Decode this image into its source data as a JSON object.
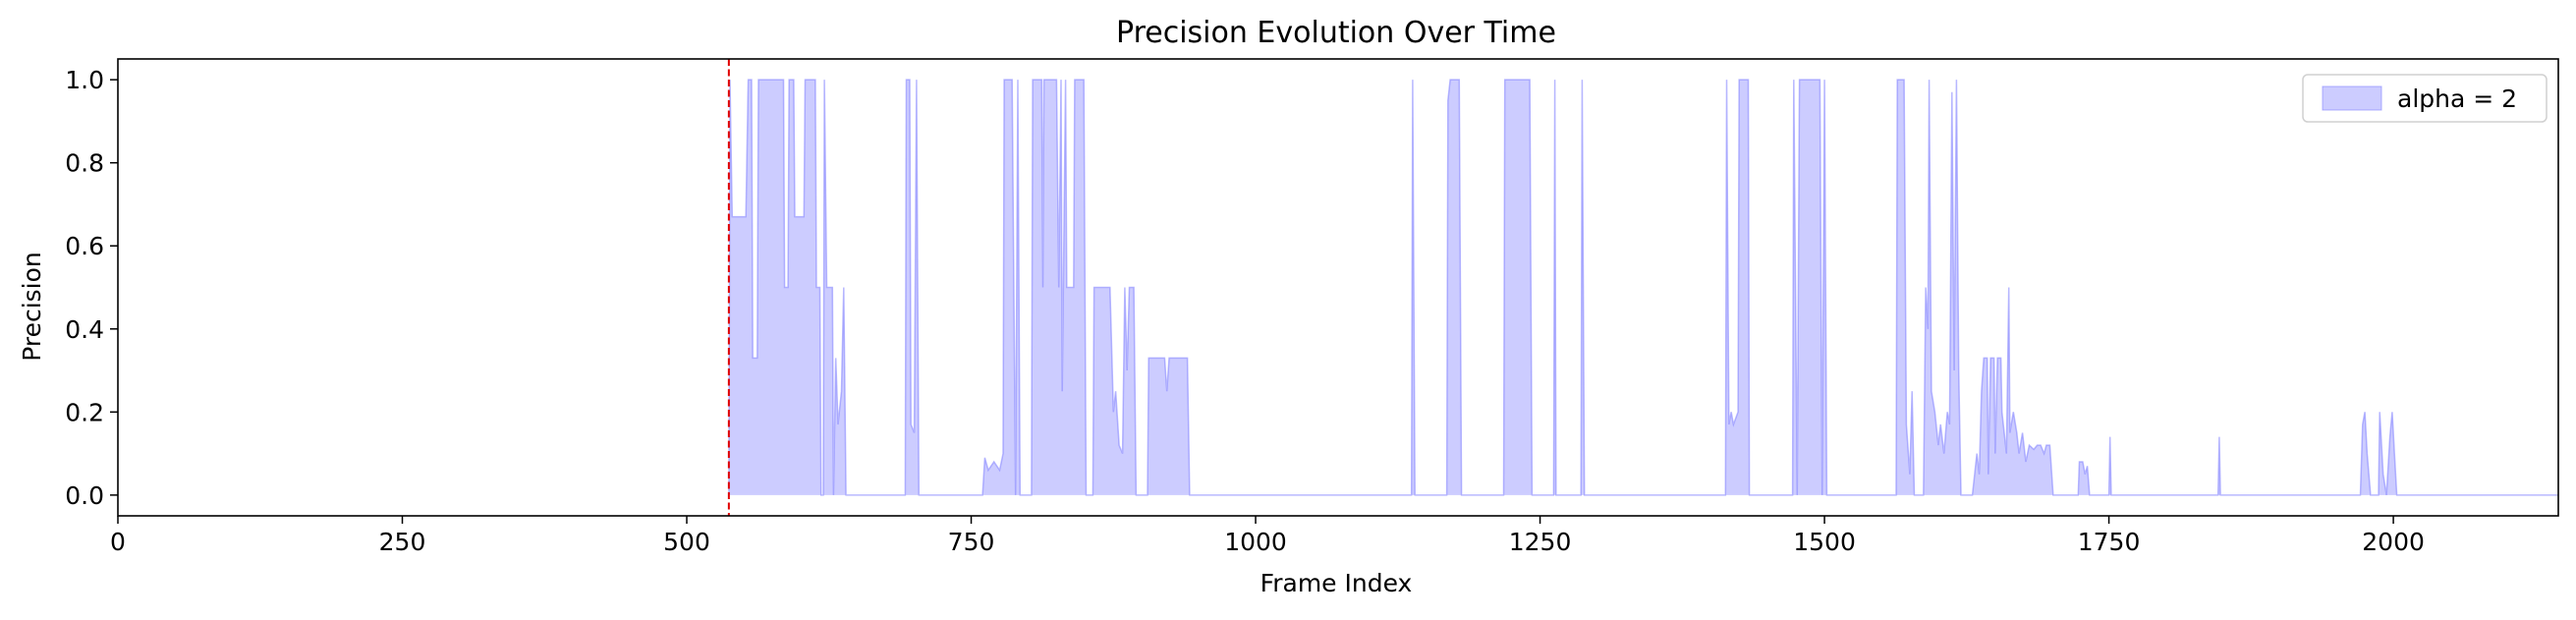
{
  "chart_data": {
    "type": "area",
    "title": "Precision Evolution Over Time",
    "xlabel": "Frame Index",
    "ylabel": "Precision",
    "xlim": [
      0,
      2145
    ],
    "ylim": [
      -0.05,
      1.05
    ],
    "xticks": [
      0,
      250,
      500,
      750,
      1000,
      1250,
      1500,
      1750,
      2000
    ],
    "yticks": [
      0.0,
      0.2,
      0.4,
      0.6,
      0.8,
      1.0
    ],
    "grid": false,
    "legend": {
      "position": "top-right"
    },
    "vline": {
      "x": 537,
      "color": "#e00000",
      "style": "dashed"
    },
    "series": [
      {
        "name": "alpha = 2",
        "color": "#8080ff",
        "fill_alpha": 0.4,
        "points": [
          [
            537,
            0
          ],
          [
            538,
            1.0
          ],
          [
            540,
            0.67
          ],
          [
            552,
            0.67
          ],
          [
            554,
            1.0
          ],
          [
            557,
            1.0
          ],
          [
            558,
            0.33
          ],
          [
            562,
            0.33
          ],
          [
            563,
            1.0
          ],
          [
            585,
            1.0
          ],
          [
            586,
            0.5
          ],
          [
            589,
            0.5
          ],
          [
            590,
            1.0
          ],
          [
            594,
            1.0
          ],
          [
            595,
            0.67
          ],
          [
            603,
            0.67
          ],
          [
            604,
            1.0
          ],
          [
            613,
            1.0
          ],
          [
            614,
            0.5
          ],
          [
            617,
            0.5
          ],
          [
            618,
            0
          ],
          [
            620,
            0
          ],
          [
            621,
            1.0
          ],
          [
            623,
            0.5
          ],
          [
            628,
            0.5
          ],
          [
            629,
            0
          ],
          [
            631,
            0.33
          ],
          [
            633,
            0.17
          ],
          [
            636,
            0.25
          ],
          [
            638,
            0.5
          ],
          [
            640,
            0
          ],
          [
            692,
            0
          ],
          [
            693,
            1.0
          ],
          [
            696,
            1.0
          ],
          [
            697,
            0.17
          ],
          [
            700,
            0.15
          ],
          [
            702,
            1.0
          ],
          [
            704,
            0
          ],
          [
            760,
            0
          ],
          [
            762,
            0.09
          ],
          [
            765,
            0.06
          ],
          [
            770,
            0.08
          ],
          [
            775,
            0.06
          ],
          [
            778,
            0.1
          ],
          [
            779,
            1.0
          ],
          [
            786,
            1.0
          ],
          [
            789,
            0
          ],
          [
            791,
            1.0
          ],
          [
            793,
            0
          ],
          [
            803,
            0
          ],
          [
            804,
            1.0
          ],
          [
            812,
            1.0
          ],
          [
            813,
            0.5
          ],
          [
            814,
            1.0
          ],
          [
            825,
            1.0
          ],
          [
            827,
            0.5
          ],
          [
            829,
            1.0
          ],
          [
            830,
            0.25
          ],
          [
            833,
            1.0
          ],
          [
            834,
            0.5
          ],
          [
            840,
            0.5
          ],
          [
            841,
            1.0
          ],
          [
            849,
            1.0
          ],
          [
            851,
            0
          ],
          [
            857,
            0
          ],
          [
            858,
            0.5
          ],
          [
            872,
            0.5
          ],
          [
            875,
            0.2
          ],
          [
            877,
            0.25
          ],
          [
            880,
            0.12
          ],
          [
            883,
            0.1
          ],
          [
            885,
            0.5
          ],
          [
            887,
            0.3
          ],
          [
            889,
            0.5
          ],
          [
            893,
            0.5
          ],
          [
            895,
            0
          ],
          [
            905,
            0
          ],
          [
            906,
            0.33
          ],
          [
            920,
            0.33
          ],
          [
            922,
            0.25
          ],
          [
            924,
            0.33
          ],
          [
            940,
            0.33
          ],
          [
            942,
            0
          ],
          [
            1137,
            0
          ],
          [
            1138,
            1.0
          ],
          [
            1140,
            0
          ],
          [
            1168,
            0
          ],
          [
            1169,
            0.95
          ],
          [
            1171,
            1.0
          ],
          [
            1179,
            1.0
          ],
          [
            1181,
            0
          ],
          [
            1218,
            0
          ],
          [
            1219,
            1.0
          ],
          [
            1241,
            1.0
          ],
          [
            1243,
            0
          ],
          [
            1262,
            0
          ],
          [
            1263,
            1.0
          ],
          [
            1264,
            0
          ],
          [
            1286,
            0
          ],
          [
            1287,
            1.0
          ],
          [
            1289,
            0
          ],
          [
            1413,
            0
          ],
          [
            1414,
            1.0
          ],
          [
            1416,
            0.17
          ],
          [
            1418,
            0.2
          ],
          [
            1420,
            0.17
          ],
          [
            1424,
            0.2
          ],
          [
            1425,
            1.0
          ],
          [
            1433,
            1.0
          ],
          [
            1434,
            0
          ],
          [
            1472,
            0
          ],
          [
            1473,
            1.0
          ],
          [
            1476,
            0
          ],
          [
            1478,
            1.0
          ],
          [
            1496,
            1.0
          ],
          [
            1498,
            0
          ],
          [
            1500,
            1.0
          ],
          [
            1502,
            0
          ],
          [
            1563,
            0
          ],
          [
            1564,
            1.0
          ],
          [
            1570,
            1.0
          ],
          [
            1572,
            0.17
          ],
          [
            1575,
            0.05
          ],
          [
            1577,
            0.25
          ],
          [
            1579,
            0
          ],
          [
            1587,
            0
          ],
          [
            1589,
            0.5
          ],
          [
            1591,
            0.4
          ],
          [
            1592,
            1.0
          ],
          [
            1594,
            0.25
          ],
          [
            1597,
            0.2
          ],
          [
            1600,
            0.12
          ],
          [
            1602,
            0.17
          ],
          [
            1605,
            0.1
          ],
          [
            1608,
            0.2
          ],
          [
            1610,
            0.17
          ],
          [
            1612,
            0.97
          ],
          [
            1614,
            0.3
          ],
          [
            1616,
            1.0
          ],
          [
            1618,
            0.3
          ],
          [
            1620,
            0
          ],
          [
            1630,
            0
          ],
          [
            1632,
            0.05
          ],
          [
            1634,
            0.1
          ],
          [
            1636,
            0.05
          ],
          [
            1638,
            0.25
          ],
          [
            1640,
            0.33
          ],
          [
            1643,
            0.33
          ],
          [
            1644,
            0.05
          ],
          [
            1646,
            0.33
          ],
          [
            1649,
            0.33
          ],
          [
            1650,
            0.1
          ],
          [
            1652,
            0.33
          ],
          [
            1655,
            0.33
          ],
          [
            1656,
            0.2
          ],
          [
            1658,
            0.15
          ],
          [
            1660,
            0.1
          ],
          [
            1662,
            0.5
          ],
          [
            1663,
            0.15
          ],
          [
            1666,
            0.2
          ],
          [
            1669,
            0.15
          ],
          [
            1671,
            0.1
          ],
          [
            1674,
            0.15
          ],
          [
            1677,
            0.08
          ],
          [
            1680,
            0.12
          ],
          [
            1684,
            0.11
          ],
          [
            1687,
            0.12
          ],
          [
            1690,
            0.12
          ],
          [
            1693,
            0.1
          ],
          [
            1695,
            0.12
          ],
          [
            1698,
            0.12
          ],
          [
            1701,
            0
          ],
          [
            1723,
            0
          ],
          [
            1724,
            0.08
          ],
          [
            1727,
            0.08
          ],
          [
            1729,
            0.05
          ],
          [
            1731,
            0.07
          ],
          [
            1733,
            0
          ],
          [
            1750,
            0
          ],
          [
            1751,
            0.14
          ],
          [
            1752,
            0
          ],
          [
            1846,
            0
          ],
          [
            1847,
            0.14
          ],
          [
            1848,
            0
          ],
          [
            1971,
            0
          ],
          [
            1973,
            0.17
          ],
          [
            1975,
            0.2
          ],
          [
            1977,
            0.1
          ],
          [
            1980,
            0
          ],
          [
            1987,
            0
          ],
          [
            1988,
            0.2
          ],
          [
            1991,
            0.05
          ],
          [
            1994,
            0
          ],
          [
            1997,
            0.14
          ],
          [
            1999,
            0.2
          ],
          [
            2001,
            0.1
          ],
          [
            2003,
            0
          ]
        ]
      }
    ]
  }
}
